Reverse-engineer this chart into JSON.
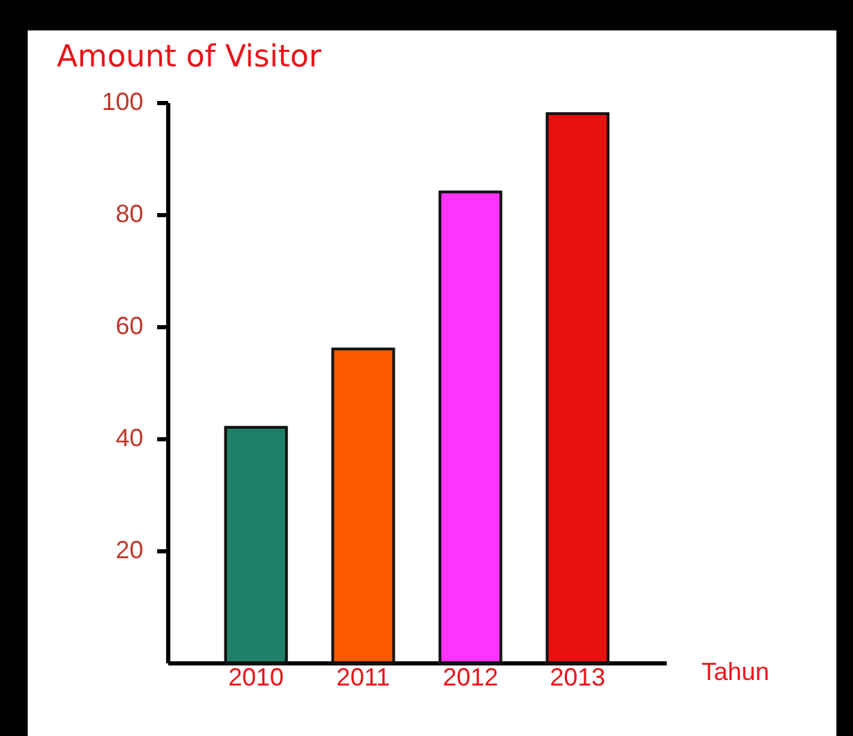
{
  "chart_data": {
    "type": "bar",
    "title": "Amount of Visitor",
    "xlabel": "Tahun",
    "categories": [
      "2010",
      "2011",
      "2012",
      "2013"
    ],
    "values": [
      42,
      56,
      84,
      98
    ],
    "colors": [
      "#1f8068",
      "#ff5a00",
      "#ff33ff",
      "#e81010"
    ],
    "ylim": [
      0,
      100
    ],
    "yticks": [
      20,
      40,
      60,
      80,
      100
    ]
  }
}
